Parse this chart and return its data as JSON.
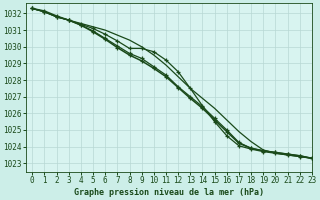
{
  "title": "Graphe pression niveau de la mer (hPa)",
  "bg_color": "#cceee8",
  "plot_bg_color": "#d8f4f0",
  "grid_color": "#b8d8d4",
  "line_color": "#1a4a1a",
  "xlim": [
    -0.5,
    23
  ],
  "ylim": [
    1022.5,
    1032.6
  ],
  "yticks": [
    1023,
    1024,
    1025,
    1026,
    1027,
    1028,
    1029,
    1030,
    1031,
    1032
  ],
  "xticks": [
    0,
    1,
    2,
    3,
    4,
    5,
    6,
    7,
    8,
    9,
    10,
    11,
    12,
    13,
    14,
    15,
    16,
    17,
    18,
    19,
    20,
    21,
    22,
    23
  ],
  "series": [
    {
      "x": [
        0,
        1,
        2,
        3,
        4,
        5,
        6,
        7,
        8,
        9,
        10,
        11,
        12,
        13,
        14,
        15,
        16,
        17,
        18,
        19,
        20,
        21,
        22,
        23
      ],
      "y": [
        1032.3,
        1032.1,
        1031.8,
        1031.6,
        1031.4,
        1031.2,
        1031.0,
        1030.7,
        1030.4,
        1030.0,
        1029.5,
        1028.9,
        1028.2,
        1027.5,
        1026.9,
        1026.3,
        1025.6,
        1024.9,
        1024.3,
        1023.8,
        1023.6,
        1023.5,
        1023.4,
        1023.3
      ],
      "marker": null,
      "lw": 0.9
    },
    {
      "x": [
        0,
        1,
        2,
        3,
        4,
        5,
        6,
        7,
        8,
        9,
        10,
        11,
        12,
        13,
        14,
        15,
        16,
        17,
        18,
        19,
        20,
        21,
        22,
        23
      ],
      "y": [
        1032.3,
        1032.1,
        1031.8,
        1031.6,
        1031.35,
        1031.1,
        1030.75,
        1030.35,
        1029.9,
        1029.9,
        1029.7,
        1029.2,
        1028.5,
        1027.5,
        1026.45,
        1025.5,
        1024.65,
        1024.05,
        1023.85,
        1023.7,
        1023.6,
        1023.5,
        1023.4,
        1023.3
      ],
      "marker": "+",
      "lw": 0.9
    },
    {
      "x": [
        0,
        1,
        2,
        3,
        4,
        5,
        6,
        7,
        8,
        9,
        10,
        11,
        12,
        13,
        14,
        15,
        16,
        17,
        18,
        19,
        20,
        21,
        22,
        23
      ],
      "y": [
        1032.3,
        1032.1,
        1031.8,
        1031.6,
        1031.3,
        1030.95,
        1030.5,
        1030.05,
        1029.6,
        1029.3,
        1028.8,
        1028.3,
        1027.6,
        1027.0,
        1026.4,
        1025.7,
        1025.0,
        1024.25,
        1023.9,
        1023.75,
        1023.65,
        1023.55,
        1023.45,
        1023.3
      ],
      "marker": "+",
      "lw": 0.9
    },
    {
      "x": [
        0,
        1,
        2,
        3,
        4,
        5,
        6,
        7,
        8,
        9,
        10,
        11,
        12,
        13,
        14,
        15,
        16,
        17,
        18,
        19,
        20,
        21,
        22,
        23
      ],
      "y": [
        1032.3,
        1032.15,
        1031.85,
        1031.6,
        1031.3,
        1030.9,
        1030.45,
        1029.95,
        1029.5,
        1029.15,
        1028.7,
        1028.2,
        1027.55,
        1026.9,
        1026.3,
        1025.6,
        1024.9,
        1024.2,
        1023.9,
        1023.75,
        1023.65,
        1023.55,
        1023.45,
        1023.3
      ],
      "marker": "+",
      "lw": 1.1
    }
  ]
}
